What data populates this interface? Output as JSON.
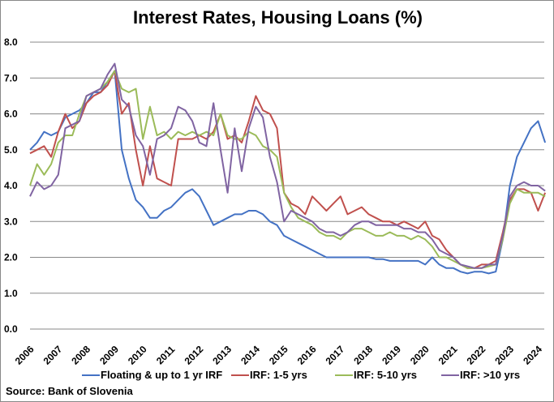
{
  "chart_data": {
    "type": "line",
    "title": "Interest Rates, Housing Loans (%)",
    "source": "Source:  Bank of Slovenia",
    "ylim": [
      0,
      8
    ],
    "yticks": [
      "0.0",
      "1.0",
      "2.0",
      "3.0",
      "4.0",
      "5.0",
      "6.0",
      "7.0",
      "8.0"
    ],
    "xticks": [
      "2006",
      "2007",
      "2008",
      "2009",
      "2010",
      "2011",
      "2012",
      "2013",
      "2014",
      "2015",
      "2016",
      "2017",
      "2018",
      "2019",
      "2020",
      "2021",
      "2022",
      "2023",
      "2024"
    ],
    "grid": true,
    "legend_position": "bottom",
    "x_start": 2006.0,
    "x_step_years": 0.25,
    "series": [
      {
        "name": "Floating & up to 1 yr IRF",
        "color": "#4472C4",
        "values": [
          5.0,
          5.2,
          5.5,
          5.4,
          5.5,
          5.9,
          6.0,
          6.1,
          6.3,
          6.6,
          6.6,
          6.9,
          7.2,
          5.0,
          4.2,
          3.6,
          3.4,
          3.1,
          3.1,
          3.3,
          3.4,
          3.6,
          3.8,
          3.9,
          3.7,
          3.3,
          2.9,
          3.0,
          3.1,
          3.2,
          3.2,
          3.3,
          3.3,
          3.2,
          3.0,
          2.9,
          2.6,
          2.5,
          2.4,
          2.3,
          2.2,
          2.1,
          2.0,
          2.0,
          2.0,
          2.0,
          2.0,
          2.0,
          2.0,
          1.95,
          1.95,
          1.9,
          1.9,
          1.9,
          1.9,
          1.9,
          1.8,
          2.0,
          1.8,
          1.7,
          1.7,
          1.6,
          1.55,
          1.6,
          1.6,
          1.55,
          1.6,
          2.5,
          4.0,
          4.8,
          5.2,
          5.6,
          5.8,
          5.2
        ]
      },
      {
        "name": "IRF: 1-5 yrs",
        "color": "#C0504D",
        "values": [
          4.9,
          5.0,
          5.1,
          4.8,
          5.5,
          6.0,
          5.6,
          5.8,
          6.3,
          6.5,
          6.6,
          6.8,
          7.2,
          6.0,
          6.3,
          5.0,
          4.0,
          5.1,
          4.2,
          4.1,
          4.0,
          5.3,
          5.3,
          5.3,
          5.4,
          5.3,
          5.5,
          6.0,
          5.3,
          5.4,
          5.2,
          5.8,
          6.5,
          6.1,
          6.0,
          5.6,
          3.8,
          3.5,
          3.4,
          3.2,
          3.7,
          3.5,
          3.3,
          3.5,
          3.7,
          3.2,
          3.3,
          3.4,
          3.2,
          3.1,
          3.0,
          3.0,
          2.9,
          3.0,
          2.9,
          2.8,
          3.0,
          2.6,
          2.5,
          2.2,
          2.0,
          1.8,
          1.7,
          1.7,
          1.8,
          1.8,
          1.9,
          2.7,
          3.6,
          3.9,
          3.9,
          3.8,
          3.3,
          3.8
        ]
      },
      {
        "name": "IRF: 5-10 yrs",
        "color": "#9BBB59",
        "values": [
          4.0,
          4.6,
          4.3,
          4.6,
          5.2,
          5.4,
          5.4,
          6.0,
          6.5,
          6.6,
          6.7,
          6.9,
          7.2,
          6.7,
          6.6,
          6.7,
          5.3,
          6.2,
          5.4,
          5.5,
          5.3,
          5.5,
          5.4,
          5.5,
          5.4,
          5.5,
          5.4,
          6.0,
          5.4,
          5.3,
          5.3,
          5.5,
          5.4,
          5.1,
          5.0,
          4.8,
          3.8,
          3.4,
          3.1,
          3.0,
          2.9,
          2.7,
          2.6,
          2.6,
          2.5,
          2.7,
          2.8,
          2.8,
          2.7,
          2.6,
          2.6,
          2.7,
          2.6,
          2.6,
          2.5,
          2.6,
          2.5,
          2.3,
          2.0,
          2.0,
          1.9,
          1.8,
          1.7,
          1.7,
          1.7,
          1.75,
          1.8,
          2.5,
          3.5,
          3.9,
          3.8,
          3.8,
          3.8,
          3.7
        ]
      },
      {
        "name": "IRF: >10 yrs",
        "color": "#8064A2",
        "values": [
          3.7,
          4.1,
          3.9,
          4.0,
          4.3,
          5.6,
          5.7,
          5.8,
          6.5,
          6.6,
          6.7,
          7.1,
          7.4,
          6.4,
          6.2,
          5.4,
          5.1,
          4.3,
          5.3,
          5.4,
          5.6,
          6.2,
          6.1,
          5.8,
          5.2,
          5.1,
          6.3,
          5.0,
          3.8,
          5.6,
          4.4,
          5.6,
          6.2,
          5.9,
          4.8,
          4.1,
          3.0,
          3.3,
          3.2,
          3.1,
          3.0,
          2.8,
          2.7,
          2.7,
          2.6,
          2.7,
          2.9,
          3.0,
          3.0,
          2.9,
          2.9,
          2.9,
          2.9,
          2.8,
          2.8,
          2.7,
          2.7,
          2.5,
          2.2,
          2.1,
          2.0,
          1.8,
          1.75,
          1.7,
          1.7,
          1.8,
          1.8,
          2.6,
          3.7,
          4.0,
          4.1,
          4.0,
          4.0,
          3.85
        ]
      }
    ]
  }
}
